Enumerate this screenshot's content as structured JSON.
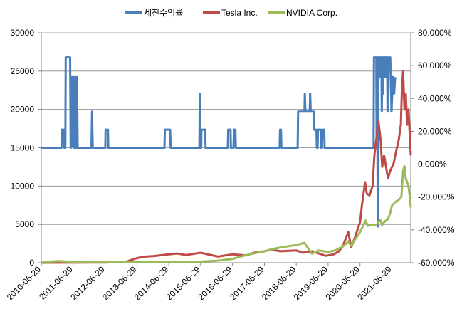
{
  "chart_data": {
    "type": "line",
    "legend_placement": "top",
    "grid": "horizontal",
    "x_axis": {
      "tick_labels": [
        "2010-06-29",
        "2011-06-29",
        "2012-06-29",
        "2013-06-29",
        "2014-06-29",
        "2015-06-29",
        "2016-06-29",
        "2017-06-29",
        "2018-06-29",
        "2019-06-29",
        "2020-06-29",
        "2021-06-29"
      ],
      "range": [
        "2010-06-29",
        "2022-01-31"
      ]
    },
    "y_left": {
      "range": [
        0,
        30000
      ],
      "ticks": [
        0,
        5000,
        10000,
        15000,
        20000,
        25000,
        30000
      ],
      "tick_labels": [
        "0",
        "5000",
        "10000",
        "15000",
        "20000",
        "25000",
        "30000"
      ]
    },
    "y_right": {
      "range": [
        -0.6,
        0.8
      ],
      "ticks": [
        -0.6,
        -0.4,
        -0.2,
        0.0,
        0.2,
        0.4,
        0.6,
        0.8
      ],
      "tick_labels": [
        "-60.000%",
        "-40.000%",
        "-20.000%",
        "0.000%",
        "20.000%",
        "40.000%",
        "60.000%",
        "80.000%"
      ]
    },
    "series": [
      {
        "name": "세전수익률",
        "color": "#4a7ebb",
        "axis": "right",
        "points": [
          [
            "2010-06-29",
            0.1
          ],
          [
            "2011-02-15",
            0.1
          ],
          [
            "2011-02-20",
            0.21
          ],
          [
            "2011-03-15",
            0.21
          ],
          [
            "2011-03-20",
            0.1
          ],
          [
            "2011-04-01",
            0.1
          ],
          [
            "2011-04-05",
            0.65
          ],
          [
            "2011-05-25",
            0.65
          ],
          [
            "2011-06-01",
            0.1
          ],
          [
            "2011-06-05",
            0.53
          ],
          [
            "2011-06-12",
            0.11
          ],
          [
            "2011-06-18",
            0.53
          ],
          [
            "2011-06-25",
            0.11
          ],
          [
            "2011-07-02",
            0.53
          ],
          [
            "2011-07-10",
            0.1
          ],
          [
            "2011-07-16",
            0.53
          ],
          [
            "2011-07-22",
            0.1
          ],
          [
            "2011-07-28",
            0.53
          ],
          [
            "2011-08-05",
            0.1
          ],
          [
            "2011-08-12",
            0.53
          ],
          [
            "2011-08-20",
            0.1
          ],
          [
            "2012-01-25",
            0.1
          ],
          [
            "2012-02-01",
            0.32
          ],
          [
            "2012-02-08",
            0.1
          ],
          [
            "2012-07-01",
            0.1
          ],
          [
            "2012-07-05",
            0.21
          ],
          [
            "2012-08-01",
            0.21
          ],
          [
            "2012-08-05",
            0.1
          ],
          [
            "2014-05-10",
            0.1
          ],
          [
            "2014-05-15",
            0.21
          ],
          [
            "2014-07-15",
            0.21
          ],
          [
            "2014-07-20",
            0.1
          ],
          [
            "2015-06-15",
            0.1
          ],
          [
            "2015-06-20",
            0.43
          ],
          [
            "2015-06-27",
            0.1
          ],
          [
            "2015-07-05",
            0.1
          ],
          [
            "2015-07-08",
            0.21
          ],
          [
            "2015-08-20",
            0.21
          ],
          [
            "2015-08-25",
            0.1
          ],
          [
            "2016-05-05",
            0.1
          ],
          [
            "2016-05-10",
            0.21
          ],
          [
            "2016-06-05",
            0.21
          ],
          [
            "2016-06-10",
            0.1
          ],
          [
            "2016-07-10",
            0.1
          ],
          [
            "2016-07-15",
            0.21
          ],
          [
            "2016-08-01",
            0.21
          ],
          [
            "2016-08-05",
            0.1
          ],
          [
            "2017-12-20",
            0.1
          ],
          [
            "2017-12-25",
            0.21
          ],
          [
            "2018-01-05",
            0.21
          ],
          [
            "2018-01-10",
            0.1
          ],
          [
            "2018-07-15",
            0.1
          ],
          [
            "2018-07-20",
            0.32
          ],
          [
            "2018-10-01",
            0.32
          ],
          [
            "2018-10-05",
            0.43
          ],
          [
            "2018-10-12",
            0.32
          ],
          [
            "2018-11-30",
            0.32
          ],
          [
            "2018-12-05",
            0.43
          ],
          [
            "2018-12-12",
            0.32
          ],
          [
            "2019-01-15",
            0.32
          ],
          [
            "2019-01-20",
            0.21
          ],
          [
            "2019-02-15",
            0.21
          ],
          [
            "2019-02-20",
            0.1
          ],
          [
            "2019-02-28",
            0.1
          ],
          [
            "2019-03-05",
            0.21
          ],
          [
            "2019-04-05",
            0.21
          ],
          [
            "2019-04-10",
            0.1
          ],
          [
            "2019-04-20",
            0.1
          ],
          [
            "2019-04-25",
            0.21
          ],
          [
            "2019-05-15",
            0.21
          ],
          [
            "2019-05-20",
            0.1
          ],
          [
            "2020-11-20",
            0.1
          ],
          [
            "2020-12-01",
            0.1
          ],
          [
            "2020-12-05",
            0.65
          ],
          [
            "2021-01-01",
            0.65
          ],
          [
            "2021-01-05",
            0.1
          ],
          [
            "2021-01-10",
            0.65
          ],
          [
            "2021-01-18",
            -0.38
          ],
          [
            "2021-01-24",
            0.65
          ],
          [
            "2021-02-10",
            0.65
          ],
          [
            "2021-02-15",
            0.53
          ],
          [
            "2021-02-20",
            0.65
          ],
          [
            "2021-03-01",
            0.65
          ],
          [
            "2021-03-05",
            0.32
          ],
          [
            "2021-03-12",
            0.65
          ],
          [
            "2021-03-20",
            0.43
          ],
          [
            "2021-03-26",
            0.65
          ],
          [
            "2021-04-10",
            0.65
          ],
          [
            "2021-04-15",
            0.53
          ],
          [
            "2021-04-22",
            0.65
          ],
          [
            "2021-05-05",
            0.65
          ],
          [
            "2021-05-10",
            0.32
          ],
          [
            "2021-05-18",
            0.65
          ],
          [
            "2021-06-10",
            0.65
          ],
          [
            "2021-06-15",
            0.53
          ],
          [
            "2021-06-25",
            0.32
          ],
          [
            "2021-07-10",
            0.53
          ],
          [
            "2021-07-25",
            0.43
          ],
          [
            "2021-08-05",
            0.53
          ]
        ]
      },
      {
        "name": "Tesla Inc.",
        "color": "#be4b48",
        "axis": "left",
        "points": [
          [
            "2010-06-29",
            0
          ],
          [
            "2012-06-29",
            30
          ],
          [
            "2013-03-01",
            150
          ],
          [
            "2013-06-29",
            600
          ],
          [
            "2013-10-01",
            800
          ],
          [
            "2014-01-01",
            850
          ],
          [
            "2014-06-29",
            1100
          ],
          [
            "2014-10-01",
            1200
          ],
          [
            "2015-01-15",
            1000
          ],
          [
            "2015-06-29",
            1300
          ],
          [
            "2016-01-15",
            800
          ],
          [
            "2016-06-29",
            1100
          ],
          [
            "2016-12-01",
            950
          ],
          [
            "2017-03-01",
            1300
          ],
          [
            "2017-06-29",
            1500
          ],
          [
            "2017-09-15",
            1700
          ],
          [
            "2018-01-01",
            1500
          ],
          [
            "2018-06-29",
            1600
          ],
          [
            "2018-09-15",
            1300
          ],
          [
            "2019-01-01",
            1500
          ],
          [
            "2019-06-01",
            900
          ],
          [
            "2019-09-01",
            1100
          ],
          [
            "2019-11-01",
            1500
          ],
          [
            "2019-12-15",
            2200
          ],
          [
            "2020-02-15",
            4000
          ],
          [
            "2020-03-20",
            2000
          ],
          [
            "2020-05-01",
            3300
          ],
          [
            "2020-06-29",
            5300
          ],
          [
            "2020-07-20",
            7500
          ],
          [
            "2020-08-25",
            10500
          ],
          [
            "2020-09-15",
            9000
          ],
          [
            "2020-10-15",
            8800
          ],
          [
            "2020-11-20",
            10000
          ],
          [
            "2020-12-10",
            14000
          ],
          [
            "2021-01-26",
            18500
          ],
          [
            "2021-02-20",
            16000
          ],
          [
            "2021-03-10",
            12500
          ],
          [
            "2021-04-01",
            14000
          ],
          [
            "2021-05-15",
            11000
          ],
          [
            "2021-06-10",
            12000
          ],
          [
            "2021-07-20",
            13000
          ],
          [
            "2021-08-15",
            14500
          ],
          [
            "2021-09-15",
            16000
          ],
          [
            "2021-10-10",
            18000
          ],
          [
            "2021-10-20",
            22000
          ],
          [
            "2021-11-04",
            25000
          ],
          [
            "2021-11-20",
            20000
          ],
          [
            "2021-12-05",
            22000
          ],
          [
            "2021-12-20",
            18000
          ],
          [
            "2022-01-05",
            20000
          ],
          [
            "2022-01-20",
            16500
          ],
          [
            "2022-01-31",
            14000
          ]
        ]
      },
      {
        "name": "NVIDIA Corp.",
        "color": "#9bbb59",
        "axis": "left",
        "points": [
          [
            "2010-06-29",
            0
          ],
          [
            "2010-09-01",
            100
          ],
          [
            "2011-01-01",
            200
          ],
          [
            "2011-06-29",
            100
          ],
          [
            "2012-01-01",
            60
          ],
          [
            "2013-01-01",
            50
          ],
          [
            "2014-01-01",
            60
          ],
          [
            "2015-01-01",
            120
          ],
          [
            "2015-06-29",
            150
          ],
          [
            "2016-01-01",
            250
          ],
          [
            "2016-06-29",
            500
          ],
          [
            "2016-12-01",
            1000
          ],
          [
            "2017-06-29",
            1500
          ],
          [
            "2017-09-01",
            1700
          ],
          [
            "2018-01-01",
            2000
          ],
          [
            "2018-06-29",
            2300
          ],
          [
            "2018-09-30",
            2600
          ],
          [
            "2018-12-24",
            1200
          ],
          [
            "2019-03-15",
            1600
          ],
          [
            "2019-06-29",
            1400
          ],
          [
            "2019-09-15",
            1600
          ],
          [
            "2019-12-15",
            2100
          ],
          [
            "2020-02-15",
            2800
          ],
          [
            "2020-03-20",
            2200
          ],
          [
            "2020-05-01",
            3000
          ],
          [
            "2020-06-29",
            4000
          ],
          [
            "2020-09-01",
            5500
          ],
          [
            "2020-09-25",
            4800
          ],
          [
            "2020-11-15",
            5000
          ],
          [
            "2021-01-01",
            4900
          ],
          [
            "2021-02-15",
            5600
          ],
          [
            "2021-03-10",
            4900
          ],
          [
            "2021-04-01",
            5300
          ],
          [
            "2021-05-15",
            5700
          ],
          [
            "2021-06-10",
            6500
          ],
          [
            "2021-07-01",
            7500
          ],
          [
            "2021-08-15",
            8000
          ],
          [
            "2021-09-15",
            8200
          ],
          [
            "2021-10-15",
            8600
          ],
          [
            "2021-11-05",
            12000
          ],
          [
            "2021-11-20",
            12600
          ],
          [
            "2021-12-05",
            11000
          ],
          [
            "2021-12-20",
            10500
          ],
          [
            "2022-01-05",
            10000
          ],
          [
            "2022-01-20",
            8500
          ],
          [
            "2022-01-31",
            7200
          ]
        ]
      }
    ]
  }
}
